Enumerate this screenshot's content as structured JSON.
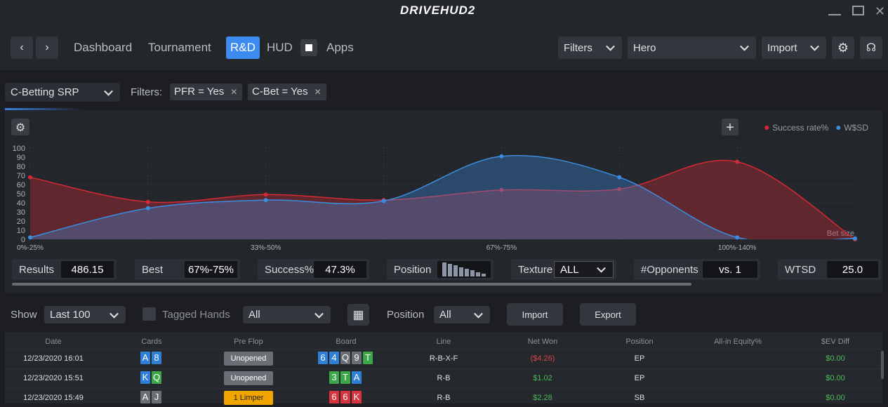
{
  "titlebar": {
    "logo": "DRIVEHUD2"
  },
  "nav": {
    "items": [
      "Dashboard",
      "Tournament",
      "R&D",
      "HUD",
      "Apps"
    ],
    "filters": "Filters",
    "player": "Hero",
    "import": "Import"
  },
  "report": {
    "name": "C-Betting SRP",
    "filters_label": "Filters:",
    "filters": [
      "PFR = Yes",
      "C-Bet = Yes"
    ]
  },
  "chart_data": {
    "type": "area",
    "x_label": "Bet size",
    "categories": [
      "0%-25%",
      null,
      "33%-50%",
      null,
      "67%-75%",
      null,
      "100%-140%",
      null
    ],
    "series": [
      {
        "name": "Success rate%",
        "color": "#d42a35",
        "values": [
          68,
          41,
          49,
          43,
          54,
          55,
          85,
          0
        ]
      },
      {
        "name": "W$SD",
        "color": "#3c8de0",
        "values": [
          2,
          34,
          43,
          42,
          91,
          68,
          2,
          1
        ]
      }
    ],
    "ylim": [
      0,
      100
    ],
    "yticks": [
      0,
      10,
      20,
      30,
      40,
      50,
      60,
      70,
      80,
      90,
      100
    ],
    "grid": true,
    "legend": "top-right"
  },
  "stats": [
    {
      "label": "Results",
      "value": "486.15"
    },
    {
      "label": "Best",
      "value": "67%-75%"
    },
    {
      "label": "Success%",
      "value": "47.3%"
    },
    {
      "label": "Position"
    },
    {
      "label": "Texture",
      "value": "ALL"
    },
    {
      "label": "#Opponents",
      "value": "vs. 1"
    },
    {
      "label": "WTSD",
      "value": "25.0"
    }
  ],
  "controls": {
    "show_label": "Show",
    "show": "Last 100",
    "tagged": "Tagged Hands",
    "tagged_filter": "All",
    "position_label": "Position",
    "position": "All",
    "import": "Import",
    "export": "Export"
  },
  "table": {
    "columns": [
      "Date",
      "Cards",
      "Pre Flop",
      "Board",
      "Line",
      "Net Won",
      "Position",
      "All-in Equity%",
      "$EV Diff"
    ],
    "rows": [
      {
        "date": "12/23/2020 16:01",
        "cards": [
          {
            "rank": "A",
            "color": "#2f7fd6"
          },
          {
            "rank": "8",
            "color": "#2f7fd6"
          }
        ],
        "preflop": {
          "text": "Unopened",
          "color": "#6b6e75"
        },
        "board": [
          {
            "rank": "6",
            "color": "#2f7fd6"
          },
          {
            "rank": "4",
            "color": "#2f7fd6"
          },
          {
            "rank": "Q",
            "color": "#6b6e75"
          },
          {
            "rank": "9",
            "color": "#6b6e75"
          },
          {
            "rank": "T",
            "color": "#3aa848"
          }
        ],
        "line": "R-B-X-F",
        "net_won": "($4.26)",
        "position": "EP",
        "ev_diff": "$0.00"
      },
      {
        "date": "12/23/2020 15:51",
        "cards": [
          {
            "rank": "K",
            "color": "#2f7fd6"
          },
          {
            "rank": "Q",
            "color": "#3aa848"
          }
        ],
        "preflop": {
          "text": "Unopened",
          "color": "#6b6e75"
        },
        "board": [
          {
            "rank": "3",
            "color": "#3aa848"
          },
          {
            "rank": "T",
            "color": "#3aa848"
          },
          {
            "rank": "A",
            "color": "#2f7fd6"
          }
        ],
        "line": "R-B",
        "net_won": "$1.02",
        "position": "EP",
        "ev_diff": "$0.00"
      },
      {
        "date": "12/23/2020 15:49",
        "cards": [
          {
            "rank": "A",
            "color": "#6b6e75"
          },
          {
            "rank": "J",
            "color": "#6b6e75"
          }
        ],
        "preflop": {
          "text": "1 Limper",
          "color": "#f0a500"
        },
        "board": [
          {
            "rank": "6",
            "color": "#d9343e"
          },
          {
            "rank": "6",
            "color": "#d9343e"
          },
          {
            "rank": "K",
            "color": "#d9343e"
          }
        ],
        "line": "R-B",
        "net_won": "$2.28",
        "position": "SB",
        "ev_diff": "$0.00"
      }
    ]
  }
}
